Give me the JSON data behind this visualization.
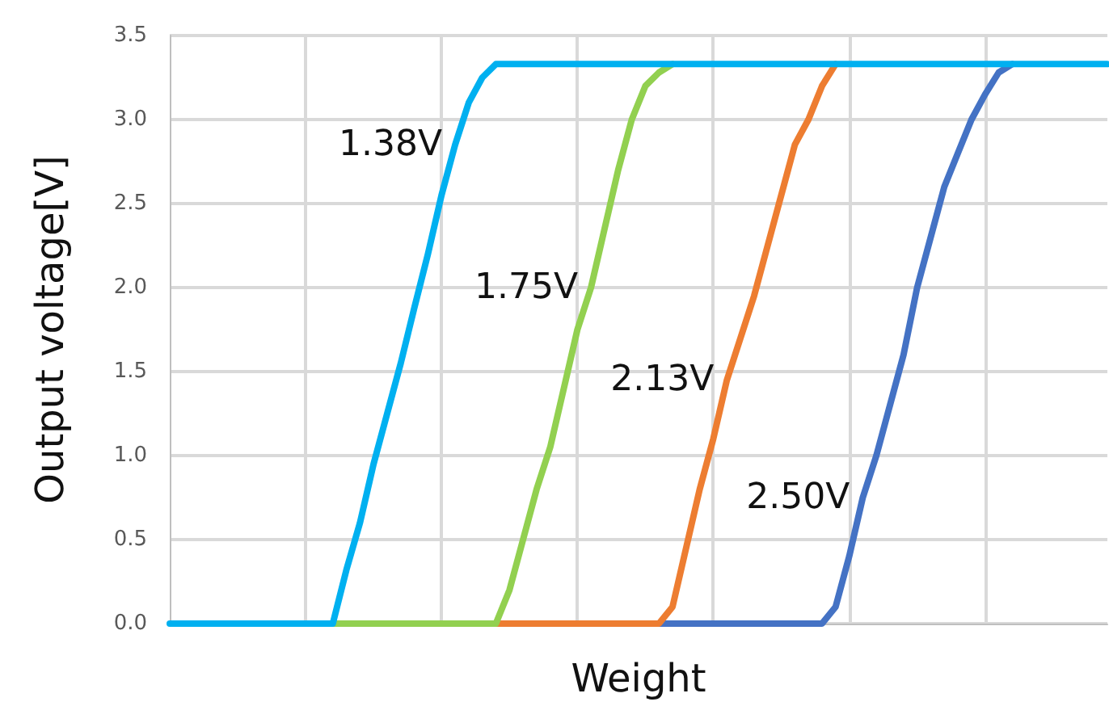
{
  "chart_data": {
    "type": "line",
    "xlabel": "Weight",
    "ylabel": "Output voltage[V]",
    "categories": [
      null,
      null,
      null,
      null,
      null,
      null,
      null,
      null,
      null,
      null,
      null,
      null,
      null,
      null,
      null,
      null,
      null,
      null,
      null,
      null,
      null,
      null,
      null,
      null,
      null,
      null,
      null,
      null,
      null,
      null,
      null,
      null,
      null,
      null,
      null,
      null,
      null,
      null,
      null,
      null,
      null,
      null,
      null,
      null,
      null,
      null,
      null,
      null,
      null,
      null,
      null,
      null,
      null,
      null,
      null,
      null,
      null,
      null,
      null,
      null,
      null,
      null,
      null,
      null,
      null,
      null,
      null,
      null,
      null,
      null
    ],
    "series": [
      {
        "name": "1.38V",
        "color": "#00b0f0",
        "values": [
          0,
          0,
          0,
          0,
          0,
          0,
          0,
          0,
          0,
          0,
          0,
          0,
          0,
          0.32,
          0.6,
          0.95,
          1.25,
          1.55,
          1.88,
          2.2,
          2.55,
          2.85,
          3.1,
          3.25,
          3.33,
          3.33,
          3.33,
          3.33,
          3.33,
          3.33,
          3.33,
          3.33,
          3.33,
          3.33,
          3.33,
          3.33,
          3.33,
          3.33,
          3.33,
          3.33,
          3.33,
          3.33,
          3.33,
          3.33,
          3.33,
          3.33,
          3.33,
          3.33,
          3.33,
          3.33,
          3.33,
          3.33,
          3.33,
          3.33,
          3.33,
          3.33,
          3.33,
          3.33,
          3.33,
          3.33,
          3.33,
          3.33,
          3.33,
          3.33,
          3.33,
          3.33,
          3.33,
          3.33,
          3.33,
          3.33
        ]
      },
      {
        "name": "1.75V",
        "color": "#92d050",
        "values": [
          null,
          null,
          null,
          null,
          null,
          null,
          null,
          null,
          null,
          null,
          null,
          null,
          0,
          0,
          0,
          0,
          0,
          0,
          0,
          0,
          0,
          0,
          0,
          0,
          0,
          0.2,
          0.5,
          0.8,
          1.05,
          1.4,
          1.75,
          2.0,
          2.35,
          2.7,
          3.0,
          3.2,
          3.28,
          3.33,
          null,
          null,
          null,
          null,
          null,
          null,
          null,
          null,
          null,
          null,
          null,
          null,
          null,
          null,
          null,
          null,
          null,
          null,
          null,
          null,
          null,
          null,
          null,
          null,
          null,
          null,
          null,
          null,
          null,
          null,
          null,
          null
        ]
      },
      {
        "name": "2.13V",
        "color": "#ed7d31",
        "values": [
          null,
          null,
          null,
          null,
          null,
          null,
          null,
          null,
          null,
          null,
          null,
          null,
          null,
          null,
          null,
          null,
          null,
          null,
          null,
          null,
          null,
          null,
          null,
          null,
          0,
          0,
          0,
          0,
          0,
          0,
          0,
          0,
          0,
          0,
          0,
          0,
          0,
          0.1,
          0.45,
          0.8,
          1.1,
          1.45,
          1.7,
          1.95,
          2.25,
          2.55,
          2.85,
          3.0,
          3.2,
          3.33,
          null,
          null,
          null,
          null,
          null,
          null,
          null,
          null,
          null,
          null,
          null,
          null,
          null,
          null,
          null,
          null,
          null,
          null,
          null,
          null
        ]
      },
      {
        "name": "2.50V",
        "color": "#4472c4",
        "values": [
          null,
          null,
          null,
          null,
          null,
          null,
          null,
          null,
          null,
          null,
          null,
          null,
          null,
          null,
          null,
          null,
          null,
          null,
          null,
          null,
          null,
          null,
          null,
          null,
          null,
          null,
          null,
          null,
          null,
          null,
          null,
          null,
          null,
          null,
          null,
          null,
          0,
          0,
          0,
          0,
          0,
          0,
          0,
          0,
          0,
          0,
          0,
          0,
          0,
          0.1,
          0.4,
          0.75,
          1.0,
          1.3,
          1.6,
          2.0,
          2.3,
          2.6,
          2.8,
          3.0,
          3.15,
          3.28,
          3.33,
          null,
          null,
          null,
          null,
          null,
          null,
          null
        ]
      }
    ],
    "ylim": [
      0,
      3.5
    ],
    "yticks": [
      {
        "value": 0,
        "label": "0.0"
      },
      {
        "value": 0.5,
        "label": "0.5"
      },
      {
        "value": 1,
        "label": "1.0"
      },
      {
        "value": 1.5,
        "label": "1.5"
      },
      {
        "value": 2,
        "label": "2.0"
      },
      {
        "value": 2.5,
        "label": "2.5"
      },
      {
        "value": 3,
        "label": "3.0"
      },
      {
        "value": 3.5,
        "label": "3.5"
      }
    ],
    "grid": true,
    "legend": false,
    "marker": "none",
    "line_style": "solid"
  }
}
